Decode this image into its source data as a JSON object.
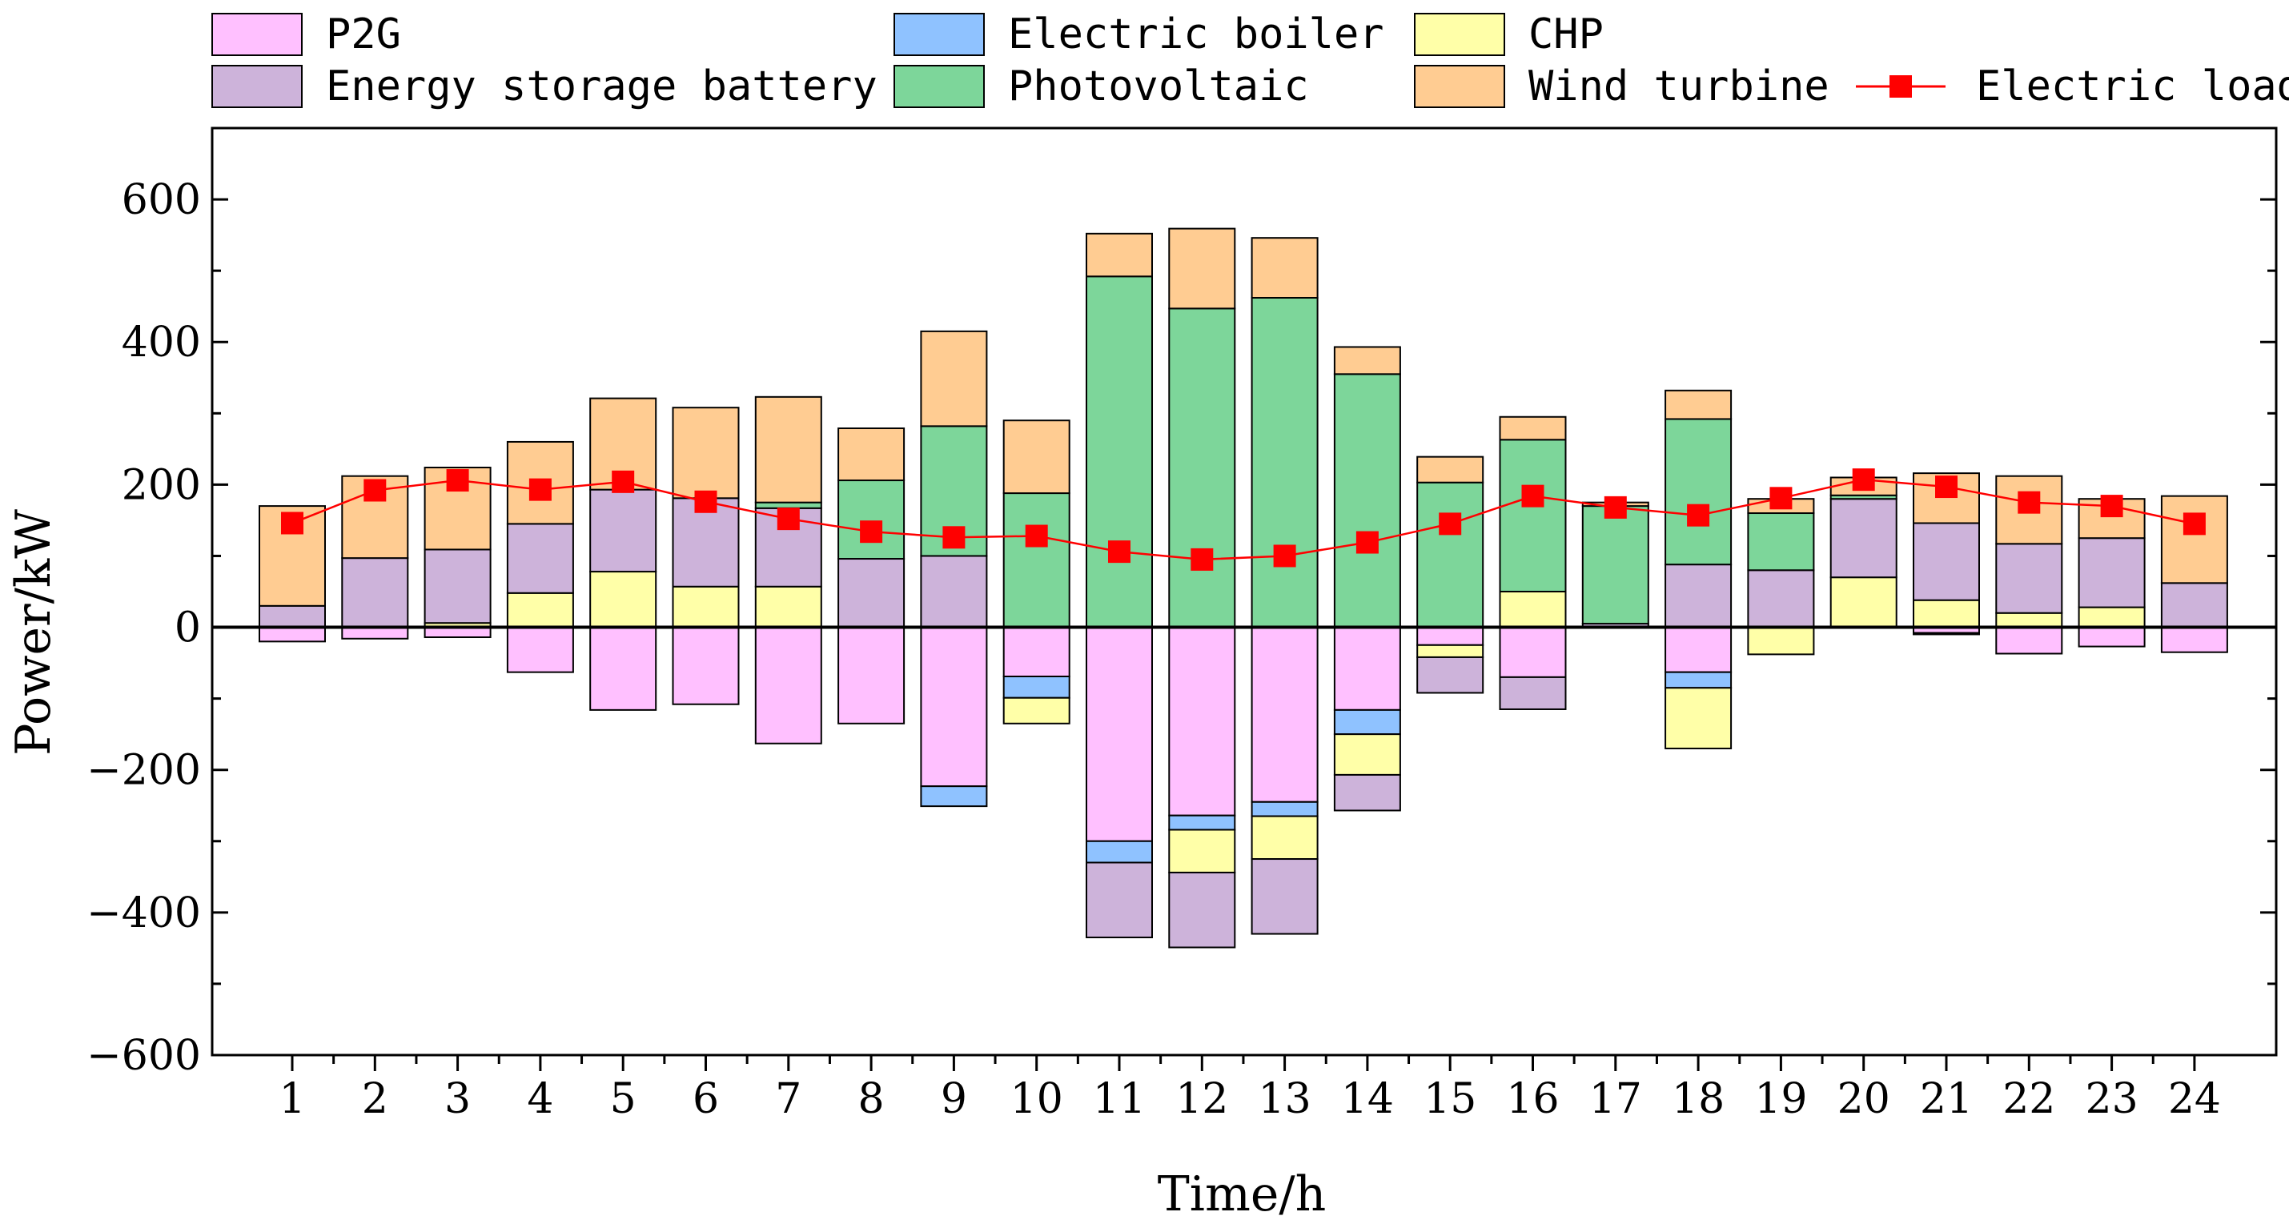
{
  "chart_data": {
    "type": "bar",
    "subtype": "stacked-bar-with-line",
    "title": "",
    "xlabel": "Time/h",
    "ylabel": "Power/kW",
    "ylim": [
      -600,
      700
    ],
    "yticks": [
      -600,
      -400,
      -200,
      0,
      200,
      400,
      600
    ],
    "ytick_labels": [
      "−600",
      "−400",
      "−200",
      "0",
      "200",
      "400",
      "600"
    ],
    "categories": [
      "1",
      "2",
      "3",
      "4",
      "5",
      "6",
      "7",
      "8",
      "9",
      "10",
      "11",
      "12",
      "13",
      "14",
      "15",
      "16",
      "17",
      "18",
      "19",
      "20",
      "21",
      "22",
      "23",
      "24"
    ],
    "legend_position": "top",
    "series": [
      {
        "name": "P2G",
        "color": "#FFC0FF",
        "values": [
          -20,
          -16,
          -14,
          -63,
          -116,
          -108,
          -163,
          -135,
          -223,
          -69,
          -300,
          -264,
          -245,
          -116,
          -25,
          -70,
          0,
          -63,
          0,
          0,
          -8,
          -37,
          -27,
          -35
        ]
      },
      {
        "name": "Electric boiler",
        "color": "#8FC2FF",
        "values": [
          0,
          0,
          0,
          0,
          0,
          0,
          0,
          0,
          -28,
          -30,
          -30,
          -20,
          -20,
          -34,
          0,
          0,
          0,
          -22,
          0,
          0,
          -2,
          0,
          0,
          0
        ]
      },
      {
        "name": "CHP",
        "color": "#FFFFA8",
        "values": [
          0,
          0,
          6,
          48,
          78,
          57,
          57,
          0,
          0,
          -36,
          0,
          -60,
          -60,
          -57,
          -17,
          50,
          0,
          -85,
          -38,
          70,
          38,
          20,
          28,
          0
        ]
      },
      {
        "name": "Energy storage battery",
        "color": "#CDB3DA",
        "values": [
          30,
          97,
          103,
          97,
          115,
          124,
          110,
          96,
          100,
          0,
          -105,
          -105,
          -105,
          -50,
          -50,
          -45,
          5,
          88,
          80,
          110,
          108,
          97,
          97,
          62
        ]
      },
      {
        "name": "Photovoltaic",
        "color": "#7DD69A",
        "values": [
          0,
          0,
          0,
          0,
          0,
          0,
          8,
          110,
          182,
          188,
          492,
          447,
          462,
          355,
          203,
          213,
          165,
          204,
          80,
          5,
          0,
          0,
          0,
          0
        ]
      },
      {
        "name": "Wind turbine",
        "color": "#FFCC92",
        "values": [
          140,
          115,
          115,
          115,
          128,
          127,
          148,
          73,
          133,
          102,
          60,
          112,
          84,
          38,
          36,
          32,
          5,
          40,
          20,
          25,
          70,
          95,
          55,
          122
        ]
      }
    ],
    "line_series": {
      "name": "Electric load",
      "color": "#FF0000",
      "values": [
        146,
        192,
        206,
        193,
        204,
        176,
        152,
        134,
        126,
        128,
        106,
        95,
        100,
        119,
        145,
        184,
        168,
        157,
        181,
        207,
        197,
        175,
        170,
        145
      ]
    }
  }
}
